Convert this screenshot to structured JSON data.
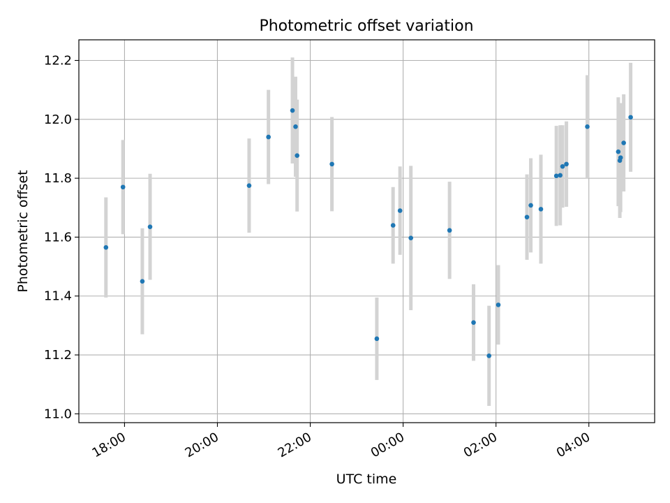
{
  "chart_data": {
    "type": "scatter",
    "title": "Photometric offset variation",
    "xlabel": "UTC time",
    "ylabel": "Photometric offset",
    "x_tick_labels": [
      "18:00",
      "20:00",
      "22:00",
      "00:00",
      "02:00",
      "04:00"
    ],
    "x_tick_values": [
      "18:00",
      "20:00",
      "22:00",
      "00:00",
      "02:00",
      "04:00"
    ],
    "xlim": [
      "17:01",
      "05:25"
    ],
    "ylim": [
      10.97,
      12.27
    ],
    "y_ticks": [
      11.0,
      11.2,
      11.4,
      11.6,
      11.8,
      12.0,
      12.2
    ],
    "grid": true,
    "colors": {
      "point": "#1f77b4",
      "error_bar": "#d3d3d3",
      "grid": "#b0b0b0",
      "axes": "#000000"
    },
    "points": [
      {
        "x": "17:36",
        "y": 11.565,
        "err": 0.17
      },
      {
        "x": "17:58",
        "y": 11.77,
        "err": 0.16
      },
      {
        "x": "18:23",
        "y": 11.45,
        "err": 0.18
      },
      {
        "x": "18:33",
        "y": 11.635,
        "err": 0.18
      },
      {
        "x": "20:41",
        "y": 11.775,
        "err": 0.16
      },
      {
        "x": "21:06",
        "y": 11.94,
        "err": 0.16
      },
      {
        "x": "21:37",
        "y": 12.03,
        "err": 0.18
      },
      {
        "x": "21:41",
        "y": 11.975,
        "err": 0.17
      },
      {
        "x": "21:43",
        "y": 11.877,
        "err": 0.19
      },
      {
        "x": "22:28",
        "y": 11.848,
        "err": 0.16
      },
      {
        "x": "23:26",
        "y": 11.255,
        "err": 0.14
      },
      {
        "x": "23:47",
        "y": 11.64,
        "err": 0.13
      },
      {
        "x": "23:56",
        "y": 11.69,
        "err": 0.15
      },
      {
        "x": "00:10",
        "y": 11.597,
        "err": 0.245
      },
      {
        "x": "01:00",
        "y": 11.623,
        "err": 0.165
      },
      {
        "x": "01:31",
        "y": 11.31,
        "err": 0.13
      },
      {
        "x": "01:51",
        "y": 11.197,
        "err": 0.17
      },
      {
        "x": "02:03",
        "y": 11.37,
        "err": 0.135
      },
      {
        "x": "02:40",
        "y": 11.668,
        "err": 0.145
      },
      {
        "x": "02:45",
        "y": 11.708,
        "err": 0.16
      },
      {
        "x": "02:58",
        "y": 11.695,
        "err": 0.185
      },
      {
        "x": "03:18",
        "y": 11.808,
        "err": 0.17
      },
      {
        "x": "03:23",
        "y": 11.81,
        "err": 0.17
      },
      {
        "x": "03:26",
        "y": 11.84,
        "err": 0.14
      },
      {
        "x": "03:31",
        "y": 11.848,
        "err": 0.145
      },
      {
        "x": "03:58",
        "y": 11.975,
        "err": 0.175
      },
      {
        "x": "04:38",
        "y": 11.89,
        "err": 0.185
      },
      {
        "x": "04:40",
        "y": 11.86,
        "err": 0.195
      },
      {
        "x": "04:41",
        "y": 11.87,
        "err": 0.185
      },
      {
        "x": "04:45",
        "y": 11.92,
        "err": 0.165
      },
      {
        "x": "04:54",
        "y": 12.007,
        "err": 0.185
      }
    ]
  }
}
